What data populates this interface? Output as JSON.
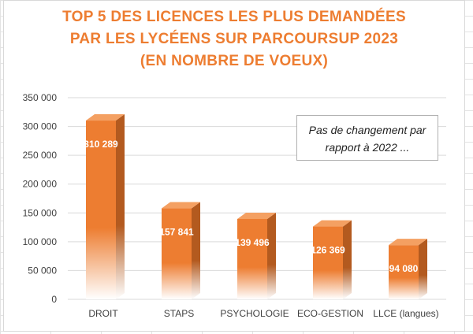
{
  "chart_data": {
    "type": "bar",
    "title": [
      "TOP 5 DES LICENCES LES PLUS DEMANDÉES",
      "PAR LES LYCÉENS SUR PARCOURSUP 2023",
      "(EN NOMBRE DE VOEUX)"
    ],
    "categories": [
      "DROIT",
      "STAPS",
      "PSYCHOLOGIE",
      "ECO-GESTION",
      "LLCE (langues)"
    ],
    "values": [
      310289,
      157841,
      139496,
      126369,
      94080
    ],
    "value_labels": [
      "310 289",
      "157 841",
      "139 496",
      "126 369",
      "94 080"
    ],
    "ylim": [
      0,
      350000
    ],
    "yticks": [
      0,
      50000,
      100000,
      150000,
      200000,
      250000,
      300000,
      350000
    ],
    "ytick_labels": [
      "0",
      "50 000",
      "100 000",
      "150 000",
      "200 000",
      "250 000",
      "300 000",
      "350 000"
    ],
    "xlabel": "",
    "ylabel": "",
    "grid": true,
    "style": "3d-column",
    "bar_color": "#ed7d31",
    "annotation": [
      "Pas de changement par",
      "rapport à 2022 ..."
    ]
  },
  "colors": {
    "title": "#ed7d31",
    "bar": "#ed7d31",
    "bar_side": "#b35a1f",
    "bar_top": "#f4a062",
    "grid": "#d9d9d9"
  }
}
